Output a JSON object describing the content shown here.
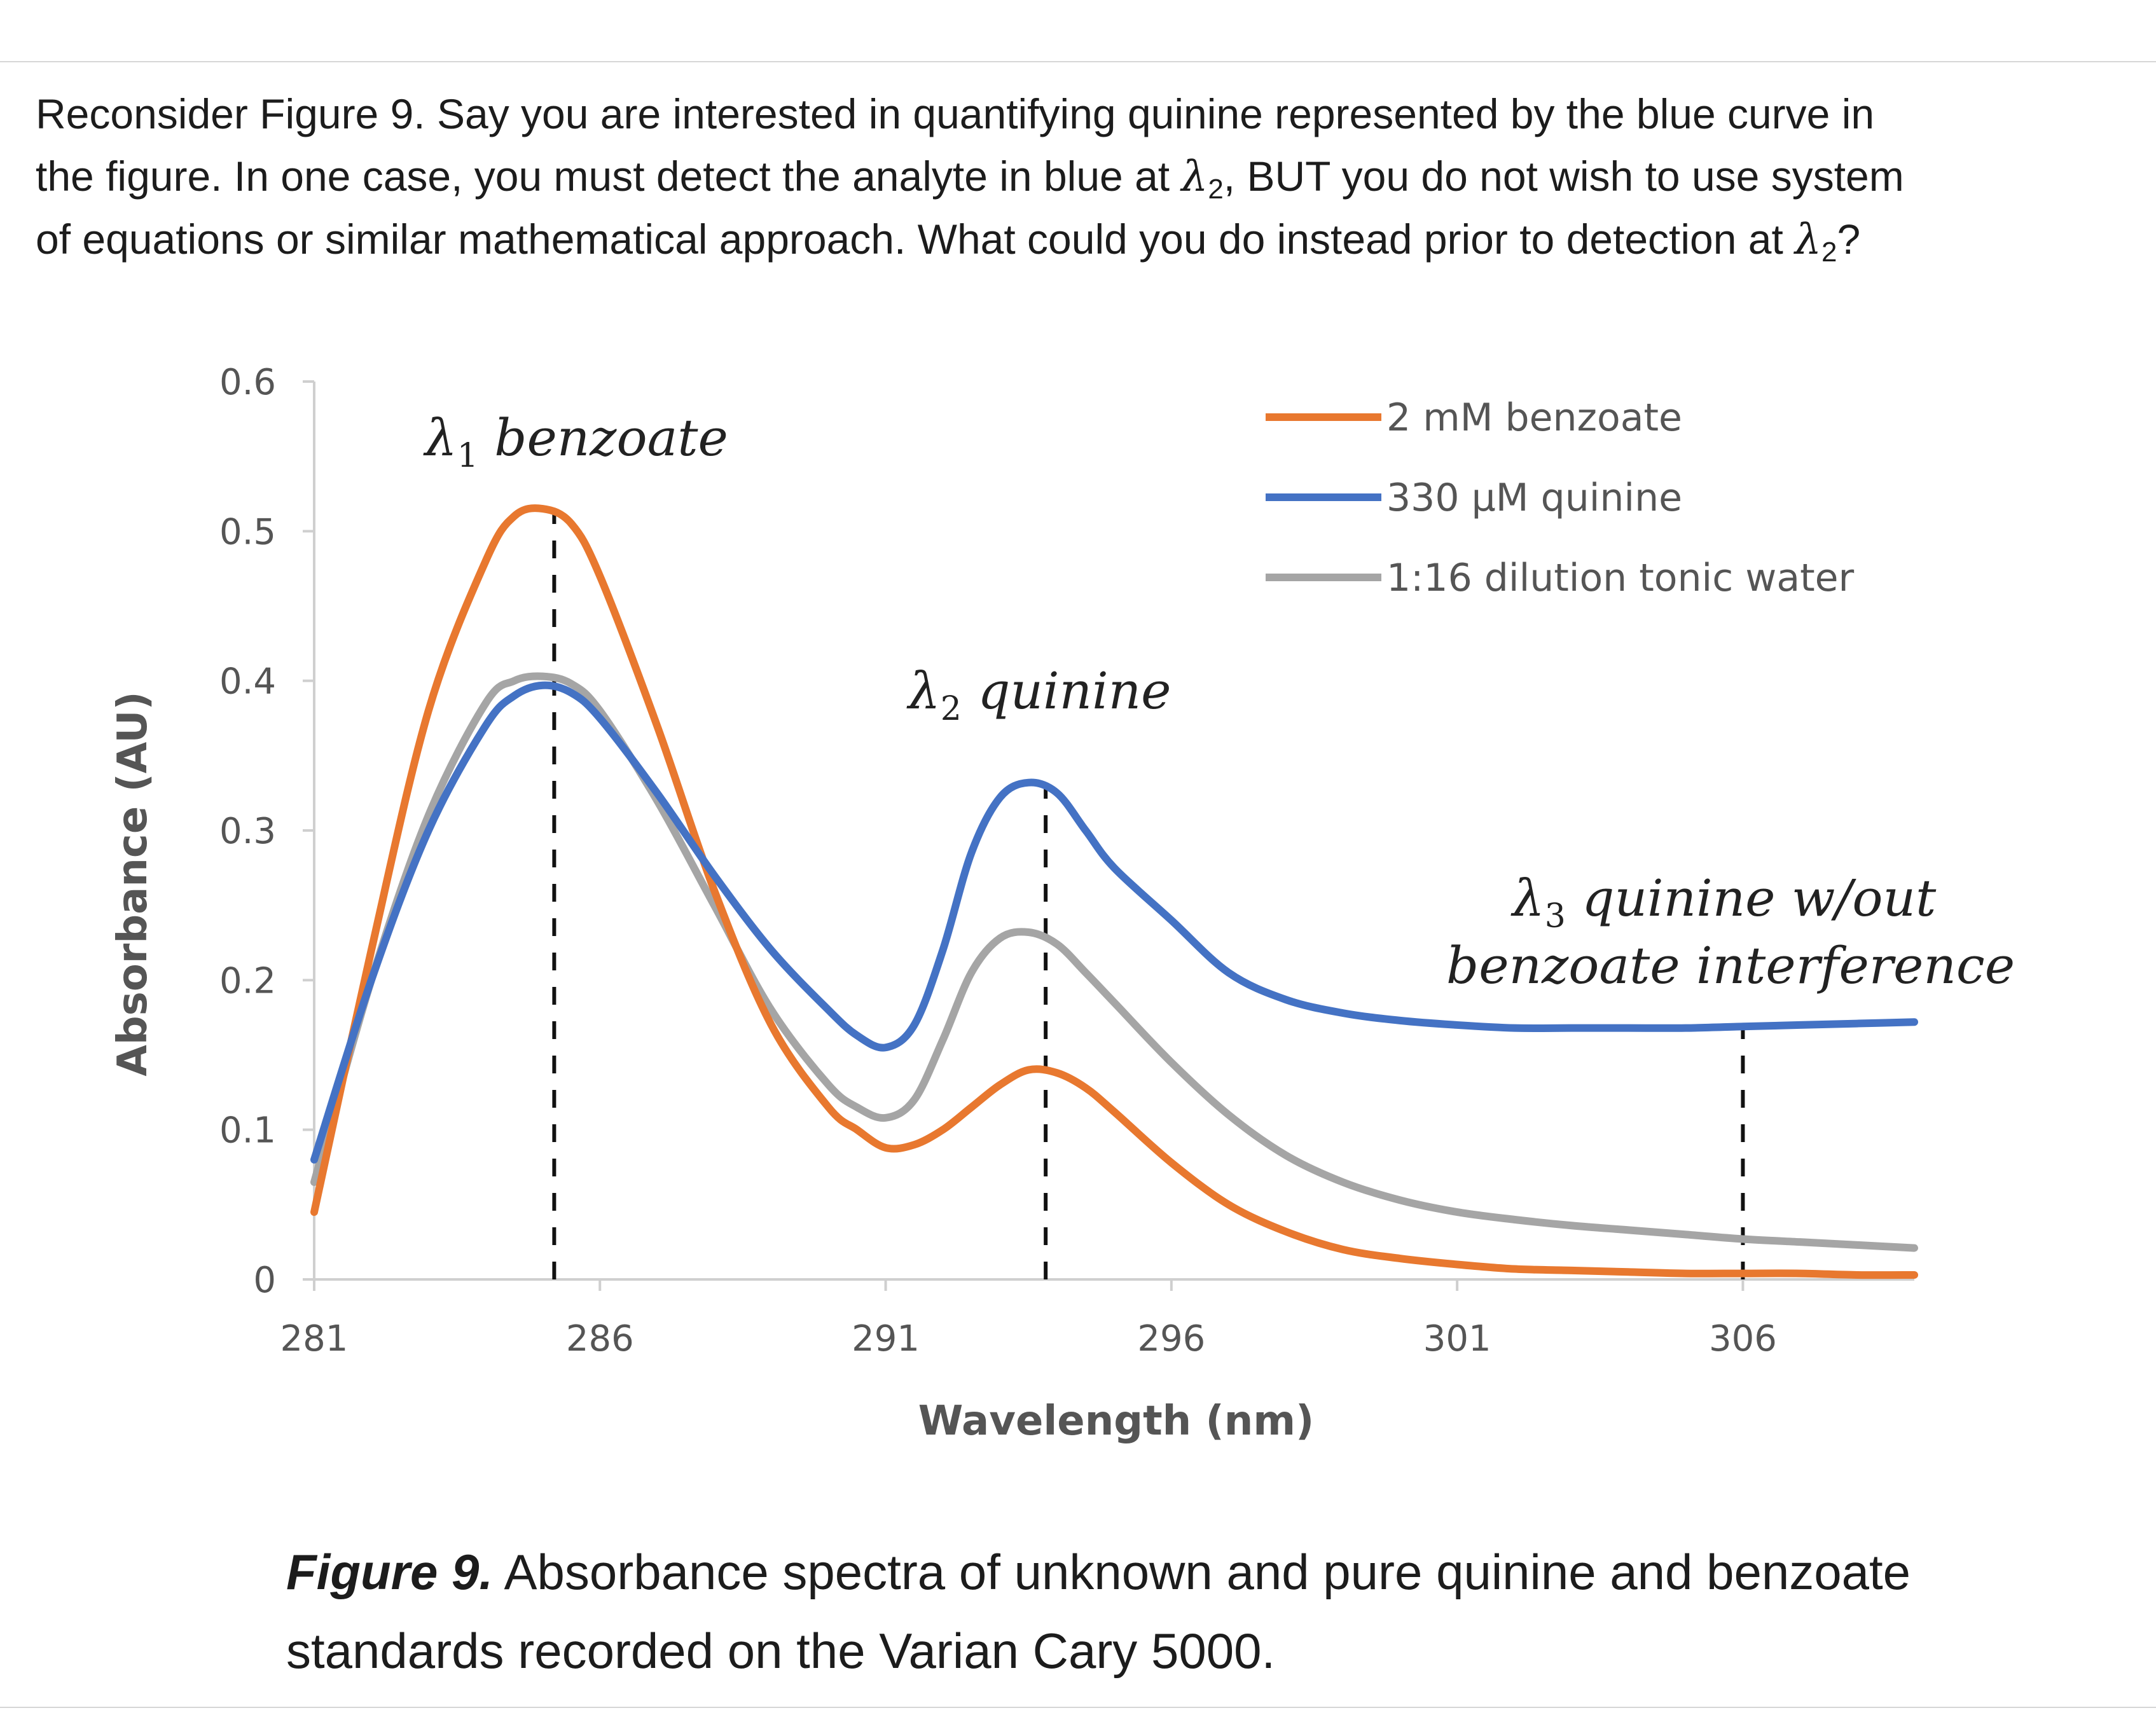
{
  "question": {
    "line1": "Reconsider Figure 9. Say you are interested in quantifying quinine represented by the blue curve in",
    "line2_a": "the figure. In one case, you must detect the analyte in blue at ",
    "line2_b": ", BUT you do not wish to use system",
    "line3_a": "of equations or similar mathematical approach. What could you do instead prior to detection at ",
    "line3_b": "?",
    "lambda_symbol": "λ",
    "lambda_sub": "2"
  },
  "caption": {
    "label": "Figure 9.",
    "text": " Absorbance spectra of unknown and pure quinine and benzoate standards recorded on the Varian Cary 5000."
  },
  "chart_data": {
    "type": "line",
    "xlabel": "Wavelength (nm)",
    "ylabel": "Absorbance (AU)",
    "xlim": [
      281,
      309
    ],
    "ylim": [
      0,
      0.6
    ],
    "x_ticks": [
      "281",
      "286",
      "291",
      "296",
      "301",
      "306"
    ],
    "y_ticks": [
      "0",
      "0.1",
      "0.2",
      "0.3",
      "0.4",
      "0.5",
      "0.6"
    ],
    "grid": false,
    "legend_position": "top-right",
    "series": [
      {
        "name": "2 mM benzoate",
        "color": "#e8782f",
        "x": [
          281,
          282,
          283,
          284,
          284.5,
          285,
          285.5,
          286,
          287,
          288,
          289,
          290,
          290.5,
          291,
          291.5,
          292,
          292.5,
          293,
          293.5,
          294,
          294.5,
          295,
          296,
          297,
          298,
          299,
          300,
          301,
          302,
          303,
          304,
          305,
          306,
          307,
          308,
          309
        ],
        "values": [
          0.045,
          0.22,
          0.38,
          0.48,
          0.51,
          0.515,
          0.505,
          0.47,
          0.37,
          0.26,
          0.17,
          0.115,
          0.1,
          0.088,
          0.09,
          0.1,
          0.115,
          0.13,
          0.14,
          0.138,
          0.128,
          0.112,
          0.078,
          0.05,
          0.032,
          0.02,
          0.014,
          0.01,
          0.007,
          0.006,
          0.005,
          0.004,
          0.004,
          0.004,
          0.003,
          0.003
        ]
      },
      {
        "name": "330 µM quinine",
        "color": "#4472c4",
        "x": [
          281,
          282,
          283,
          284,
          284.5,
          285,
          285.5,
          286,
          287,
          288,
          289,
          290,
          290.5,
          291,
          291.5,
          292,
          292.5,
          293,
          293.5,
          294,
          294.5,
          295,
          296,
          297,
          298,
          299,
          300,
          301,
          302,
          303,
          304,
          305,
          306,
          307,
          308,
          309
        ],
        "values": [
          0.08,
          0.2,
          0.3,
          0.37,
          0.39,
          0.397,
          0.392,
          0.375,
          0.325,
          0.27,
          0.22,
          0.18,
          0.163,
          0.155,
          0.17,
          0.22,
          0.285,
          0.322,
          0.332,
          0.325,
          0.3,
          0.275,
          0.24,
          0.205,
          0.187,
          0.178,
          0.173,
          0.17,
          0.168,
          0.168,
          0.168,
          0.168,
          0.169,
          0.17,
          0.171,
          0.172
        ]
      },
      {
        "name": "1:16 dilution tonic water",
        "color": "#a5a5a5",
        "x": [
          281,
          282,
          283,
          284,
          284.5,
          285,
          285.5,
          286,
          287,
          288,
          289,
          290,
          290.5,
          291,
          291.5,
          292,
          292.5,
          293,
          293.5,
          294,
          294.5,
          295,
          296,
          297,
          298,
          299,
          300,
          301,
          302,
          303,
          304,
          305,
          306,
          307,
          308,
          309
        ],
        "values": [
          0.065,
          0.2,
          0.31,
          0.385,
          0.4,
          0.403,
          0.398,
          0.38,
          0.32,
          0.25,
          0.18,
          0.13,
          0.115,
          0.108,
          0.12,
          0.16,
          0.205,
          0.228,
          0.232,
          0.224,
          0.205,
          0.185,
          0.145,
          0.11,
          0.083,
          0.065,
          0.053,
          0.045,
          0.04,
          0.036,
          0.033,
          0.03,
          0.027,
          0.025,
          0.023,
          0.021
        ]
      }
    ],
    "markers": [
      {
        "x": 285.2,
        "y_from": 0,
        "y_to": 0.515
      },
      {
        "x": 293.8,
        "y_from": 0,
        "y_to": 0.332
      },
      {
        "x": 306,
        "y_from": 0,
        "y_to": 0.168
      }
    ],
    "annotations": [
      {
        "lambda": "λ",
        "sub": "1",
        "text": " benzoate"
      },
      {
        "lambda": "λ",
        "sub": "2",
        "text": " quinine"
      },
      {
        "lambda": "λ",
        "sub": "3",
        "text": " quinine w/out"
      },
      {
        "text": "benzoate interference"
      }
    ]
  }
}
